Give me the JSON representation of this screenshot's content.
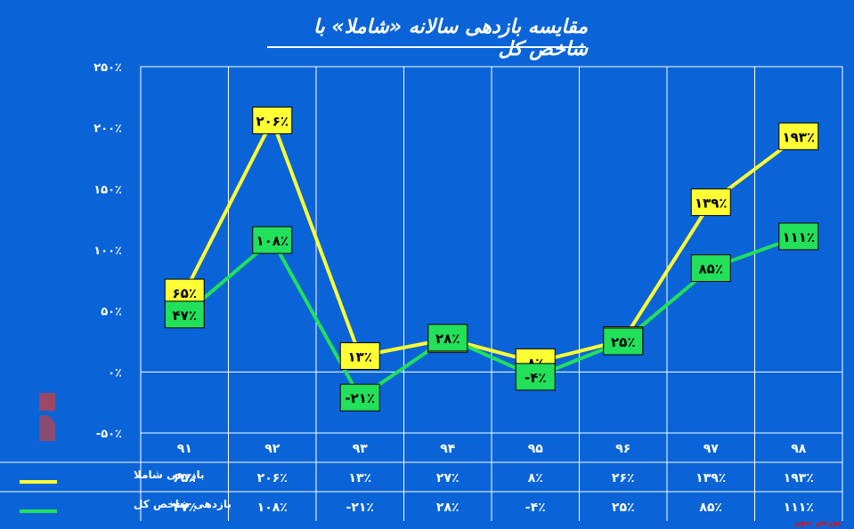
{
  "title": "مقایسه بازدهی سالانه «شاملا» با شاخص کل",
  "footer_brand": "بورس نیوز",
  "chart_data": {
    "type": "line",
    "categories": [
      "۹۱",
      "۹۲",
      "۹۳",
      "۹۴",
      "۹۵",
      "۹۶",
      "۹۷",
      "۹۸"
    ],
    "y_ticks": [
      "-۵۰٪",
      "۰٪",
      "۵۰٪",
      "۱۰۰٪",
      "۱۵۰٪",
      "۲۰۰٪",
      "۲۵۰٪"
    ],
    "ylim": [
      -50,
      250
    ],
    "grid": true,
    "series": [
      {
        "name": "بازدهی شاملا",
        "color": "#ffff33",
        "values": [
          65,
          206,
          13,
          27,
          8,
          26,
          139,
          193
        ],
        "labels": [
          "۶۵٪",
          "۲۰۶٪",
          "۱۳٪",
          "۲۷٪",
          "۸٪",
          "۲۶٪",
          "۱۳۹٪",
          "۱۹۳٪"
        ]
      },
      {
        "name": "بازدهی شاخص کل",
        "color": "#22e05a",
        "values": [
          47,
          108,
          -21,
          28,
          -4,
          25,
          85,
          111
        ],
        "labels": [
          "۴۷٪",
          "۱۰۸٪",
          "-۲۱٪",
          "۲۸٪",
          "-۴٪",
          "۲۵٪",
          "۸۵٪",
          "۱۱۱٪"
        ]
      }
    ]
  }
}
